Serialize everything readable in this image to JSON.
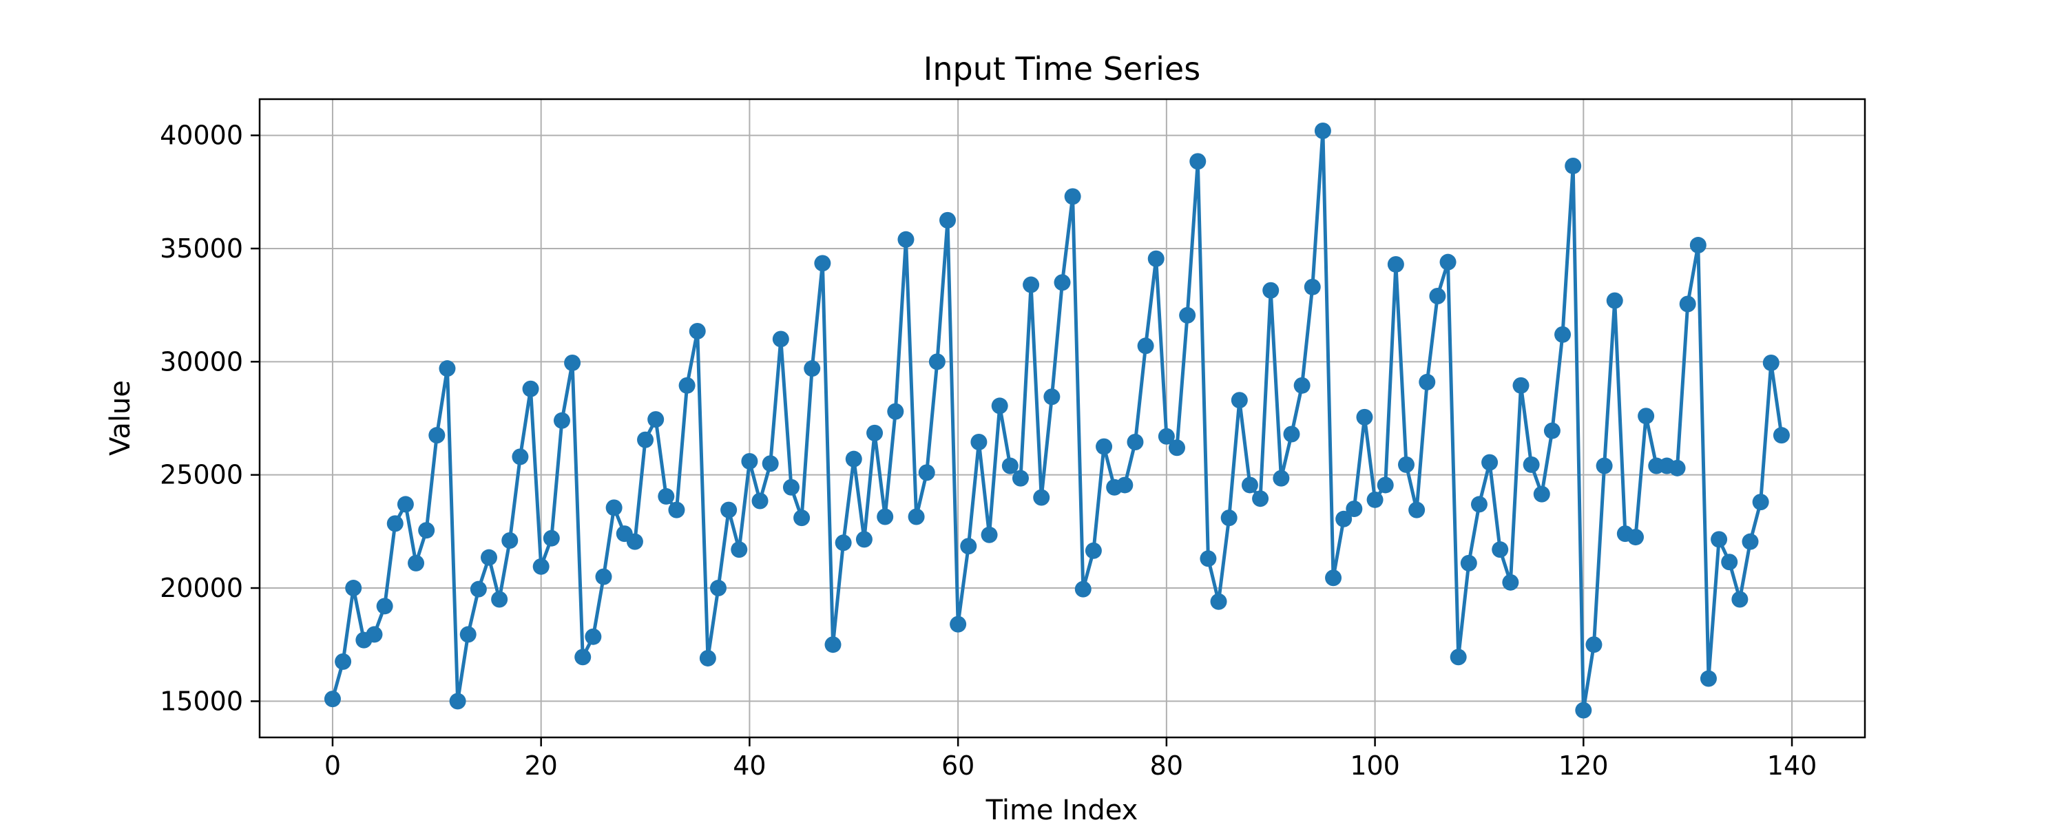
{
  "chart_data": {
    "type": "line",
    "title": "Input Time Series",
    "xlabel": "Time Index",
    "ylabel": "Value",
    "xlim": [
      -7,
      147
    ],
    "ylim": [
      13400,
      41600
    ],
    "xticks": [
      0,
      20,
      40,
      60,
      80,
      100,
      120,
      140
    ],
    "yticks": [
      15000,
      20000,
      25000,
      30000,
      35000,
      40000
    ],
    "grid": true,
    "legend": "none",
    "colors": {
      "series": "#1f77b4",
      "grid": "#b0b0b0",
      "axes": "#000000"
    },
    "series": [
      {
        "x": [
          0,
          1,
          2,
          3,
          4,
          5,
          6,
          7,
          8,
          9,
          10,
          11,
          12,
          13,
          14,
          15,
          16,
          17,
          18,
          19,
          20,
          21,
          22,
          23,
          24,
          25,
          26,
          27,
          28,
          29,
          30,
          31,
          32,
          33,
          34,
          35,
          36,
          37,
          38,
          39,
          40,
          41,
          42,
          43,
          44,
          45,
          46,
          47,
          48,
          49,
          50,
          51,
          52,
          53,
          54,
          55,
          56,
          57,
          58,
          59,
          60,
          61,
          62,
          63,
          64,
          65,
          66,
          67,
          68,
          69,
          70,
          71,
          72,
          73,
          74,
          75,
          76,
          77,
          78,
          79,
          80,
          81,
          82,
          83,
          84,
          85,
          86,
          87,
          88,
          89,
          90,
          91,
          92,
          93,
          94,
          95,
          96,
          97,
          98,
          99,
          100,
          101,
          102,
          103,
          104,
          105,
          106,
          107,
          108,
          109,
          110,
          111,
          112,
          113,
          114,
          115,
          116,
          117,
          118,
          119,
          120,
          121,
          122,
          123,
          124,
          125,
          126,
          127,
          128,
          129,
          130,
          131,
          132,
          133,
          134,
          135,
          136,
          137,
          138,
          139
        ],
        "values": [
          15100,
          16750,
          20000,
          17700,
          17950,
          19200,
          22850,
          23700,
          21100,
          22550,
          26750,
          29700,
          15000,
          17950,
          19950,
          21350,
          19500,
          22100,
          25800,
          28800,
          20950,
          22200,
          27400,
          29950,
          16950,
          17850,
          20500,
          23550,
          22400,
          22050,
          26550,
          27450,
          24050,
          23450,
          28950,
          31350,
          16900,
          20000,
          23450,
          21700,
          25600,
          23850,
          25500,
          31000,
          24450,
          23100,
          29700,
          34350,
          17500,
          22000,
          25700,
          22150,
          26850,
          23150,
          27800,
          35400,
          23150,
          25100,
          30000,
          36250,
          18400,
          21850,
          26450,
          22350,
          28050,
          25400,
          24850,
          33400,
          24000,
          28450,
          33500,
          37300,
          19950,
          21650,
          26250,
          24450,
          24550,
          26450,
          30700,
          34550,
          26700,
          26200,
          32050,
          38850,
          21300,
          19400,
          23100,
          28300,
          24550,
          23950,
          33150,
          24850,
          26800,
          28950,
          33300,
          40200,
          20450,
          23050,
          23500,
          27550,
          23900,
          24550,
          34300,
          25450,
          23450,
          29100,
          32900,
          34400,
          16950,
          21100,
          23700,
          25550,
          21700,
          20250,
          28950,
          25450,
          24150,
          26950,
          31200,
          38650,
          14600,
          17500,
          25400,
          32700,
          22400,
          22250,
          27600,
          25400,
          25400,
          25300,
          32550,
          35150,
          16000,
          22150,
          21150,
          19500,
          22050,
          23800,
          29950,
          26750
        ]
      }
    ]
  }
}
